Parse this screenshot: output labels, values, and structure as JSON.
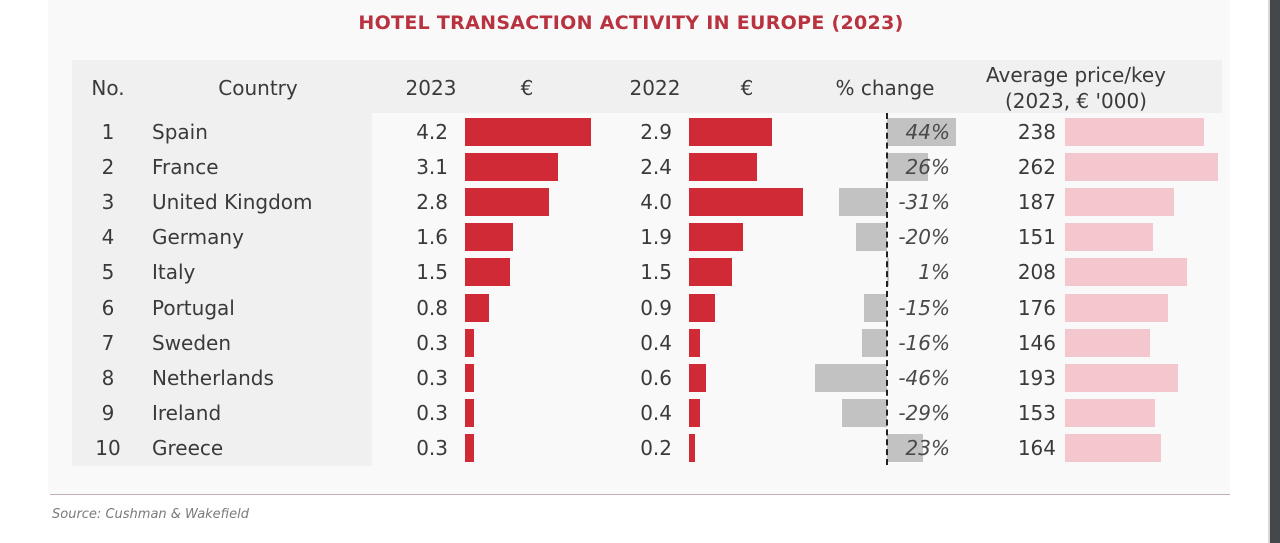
{
  "chart_data": {
    "type": "table",
    "title": "HOTEL TRANSACTION ACTIVITY IN EUROPE (2023)",
    "columns": [
      "No.",
      "Country",
      "2023",
      "€",
      "2022",
      "€",
      "% change",
      "Average price/key (2023, € '000)"
    ],
    "header": {
      "no": "No.",
      "country": "Country",
      "y2023": "2023",
      "eur1": "€",
      "y2022": "2022",
      "eur2": "€",
      "pct": "% change",
      "price_line1": "Average price/key",
      "price_line2": "(2023, € '000)"
    },
    "rows": [
      {
        "no": "1",
        "country": "Spain",
        "v2023": 4.2,
        "v2022": 2.9,
        "pct_change": 44,
        "pct_label": "44%",
        "price": 238
      },
      {
        "no": "2",
        "country": "France",
        "v2023": 3.1,
        "v2022": 2.4,
        "pct_change": 26,
        "pct_label": "26%",
        "price": 262
      },
      {
        "no": "3",
        "country": "United Kingdom",
        "v2023": 2.8,
        "v2022": 4.0,
        "pct_change": -31,
        "pct_label": "-31%",
        "price": 187
      },
      {
        "no": "4",
        "country": "Germany",
        "v2023": 1.6,
        "v2022": 1.9,
        "pct_change": -20,
        "pct_label": "-20%",
        "price": 151
      },
      {
        "no": "5",
        "country": "Italy",
        "v2023": 1.5,
        "v2022": 1.5,
        "pct_change": 1,
        "pct_label": "1%",
        "price": 208
      },
      {
        "no": "6",
        "country": "Portugal",
        "v2023": 0.8,
        "v2022": 0.9,
        "pct_change": -15,
        "pct_label": "-15%",
        "price": 176
      },
      {
        "no": "7",
        "country": "Sweden",
        "v2023": 0.3,
        "v2022": 0.4,
        "pct_change": -16,
        "pct_label": "-16%",
        "price": 146
      },
      {
        "no": "8",
        "country": "Netherlands",
        "v2023": 0.3,
        "v2022": 0.6,
        "pct_change": -46,
        "pct_label": "-46%",
        "price": 193
      },
      {
        "no": "9",
        "country": "Ireland",
        "v2023": 0.3,
        "v2022": 0.4,
        "pct_change": -29,
        "pct_label": "-29%",
        "price": 153
      },
      {
        "no": "10",
        "country": "Greece",
        "v2023": 0.3,
        "v2022": 0.2,
        "pct_change": 23,
        "pct_label": "23%",
        "price": 164
      }
    ],
    "value_format": {
      "v2023": "0.0",
      "v2022": "0.0"
    },
    "colors": {
      "bar_2023": "#cf2a35",
      "bar_2022": "#cf2a35",
      "bar_change": "#c2c2c2",
      "bar_price": "#f4c6cd",
      "title": "#b8323f"
    },
    "source": "Source: Cushman & Wakefield"
  }
}
